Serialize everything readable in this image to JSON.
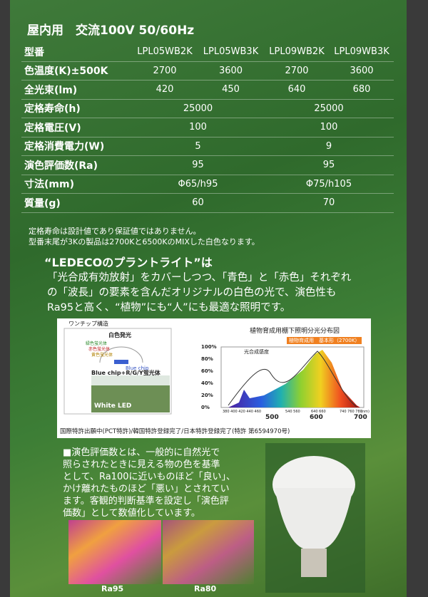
{
  "header": {
    "title": "屋内用　交流100V 50/60Hz"
  },
  "spec_table": {
    "header": [
      "型番",
      "LPL05WB2K",
      "LPL05WB3K",
      "LPL09WB2K",
      "LPL09WB3K"
    ],
    "rows": [
      [
        "色温度(K)±500K",
        2700,
        3600,
        2700,
        3600
      ],
      [
        "全光束(lm)",
        420,
        450,
        640,
        680
      ],
      [
        "定格寿命(h)",
        25000,
        25000
      ],
      [
        "定格電圧(V)",
        100,
        100
      ],
      [
        "定格消費電力(W)",
        5,
        9
      ],
      [
        "演色評価数(Ra)",
        95,
        95
      ],
      [
        "寸法(mm)",
        "Φ65/h95",
        "Φ75/h105"
      ],
      [
        "質量(g)",
        60,
        70
      ]
    ]
  },
  "notes": [
    "定格寿命は設計値であり保証値ではありません。",
    "型番末尾が3Kの製品は2700Kと6500KのMIXした白色なります。"
  ],
  "intro": {
    "heading": "“LEDECOのプラントライト”は",
    "lines": [
      "「光合成有効放射」をカバーしつつ、「青色」と「赤色」それぞれ",
      "の「波長」の要素を含んだオリジナルの白色の光で、演色性も",
      "Ra95と高く、“植物”にも“人”にも最適な照明です。"
    ]
  },
  "diagram": {
    "caption": "ワンチップ構造",
    "label": "白色発光",
    "phosphors": [
      "緑色蛍光体",
      "赤色蛍光体",
      "黄色蛍光体"
    ],
    "chip": "Blue chip",
    "formula": "Blue chip+R/G/Y蛍光体",
    "photo_label": "White LED"
  },
  "spectrum": {
    "title": "植物育成用棚下照明分光分布図",
    "legend": [
      "光合成感度",
      "植物育成用　基本形（2700K）"
    ],
    "yticks": [
      "100%",
      "80%",
      "60%",
      "40%",
      "20%",
      "0%"
    ],
    "xticks_major": [
      "500",
      "600",
      "700"
    ],
    "xticks_minor": [
      "380 400 420 440 460",
      "540 560",
      "640 660",
      "740 760 780",
      "(nm)"
    ]
  },
  "patent": "国際特許出願中(PCT特許)/韓国特許登録完了/日本特許登録完了(特許 第6594970号)",
  "ra_text": {
    "lines": [
      "■演色評価数とは、一般的に自然光で",
      "照らされたときに見える物の色を基準",
      "として、Ra100に近いものほど「良い」、",
      "かけ離れたものほど「悪い」とされてい",
      "ます。客観的判断基準を設定し「演色評",
      "価数」として数値化しています。"
    ]
  },
  "comparison": [
    "Ra95",
    "Ra80"
  ]
}
